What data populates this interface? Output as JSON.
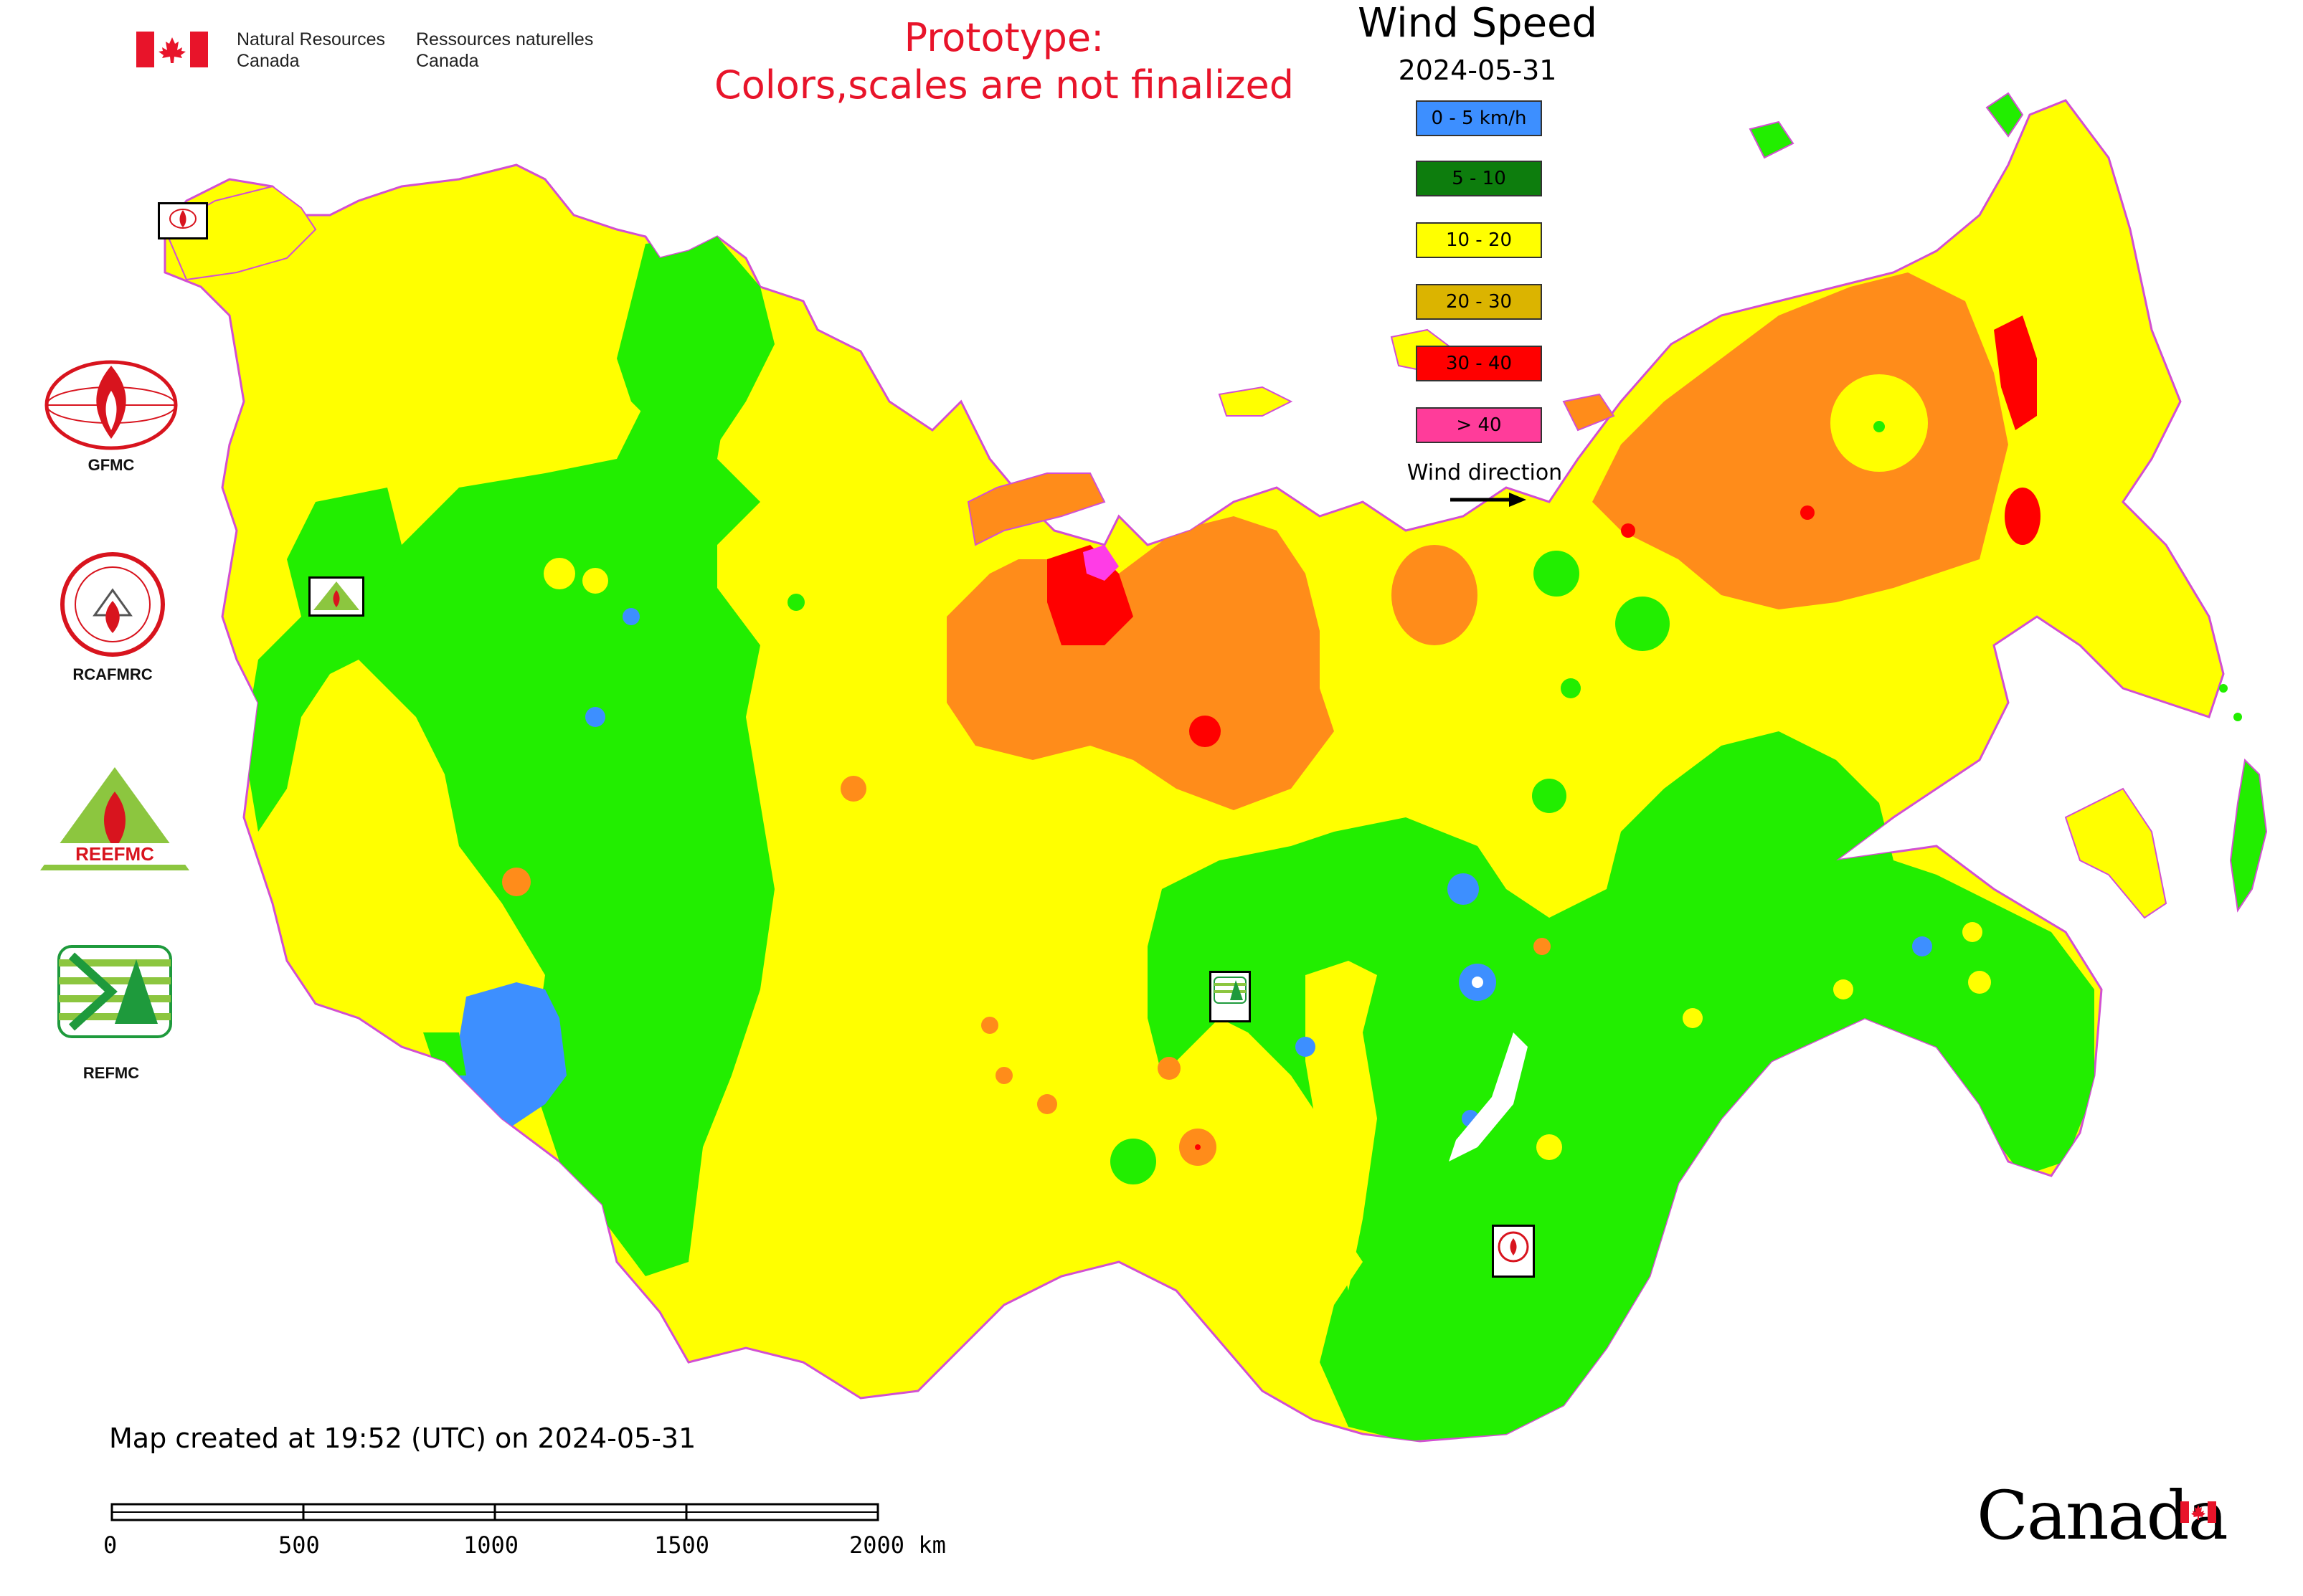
{
  "header": {
    "gov_en_line1": "Natural Resources",
    "gov_en_line2": "Canada",
    "gov_fr_line1": "Ressources naturelles",
    "gov_fr_line2": "Canada",
    "prototype_line1": "Prototype:",
    "prototype_line2": "Colors,scales are not finalized"
  },
  "legend": {
    "title": "Wind Speed",
    "date": "2024-05-31",
    "items": [
      {
        "label": "0 - 5 km/h",
        "color": "#3d8fff"
      },
      {
        "label": "5 - 10",
        "color": "#0d7d0d"
      },
      {
        "label": "10 - 20",
        "color": "#ffff00"
      },
      {
        "label": "20 - 30",
        "color": "#dbb400"
      },
      {
        "label": "30 - 40",
        "color": "#ff0000"
      },
      {
        "label": "> 40",
        "color": "#ff3c9a"
      }
    ],
    "wind_direction_label": "Wind direction"
  },
  "map_colors": {
    "calm": "#3d8fff",
    "light": "#22ee00",
    "moderate": "#ffff00",
    "fresh": "#ff8c1a",
    "strong": "#ff0000",
    "very_strong": "#ff3ce6"
  },
  "centres": [
    {
      "label": "GFMC"
    },
    {
      "label": "RCAFMRC"
    },
    {
      "label": "REEFMC"
    },
    {
      "label": "REFMC"
    }
  ],
  "footer": {
    "created_text": "Map created at 19:52 (UTC) on 2024-05-31",
    "scale_ticks": [
      "0",
      "500",
      "1000",
      "1500",
      "2000 km"
    ],
    "wordmark": "Canada"
  }
}
